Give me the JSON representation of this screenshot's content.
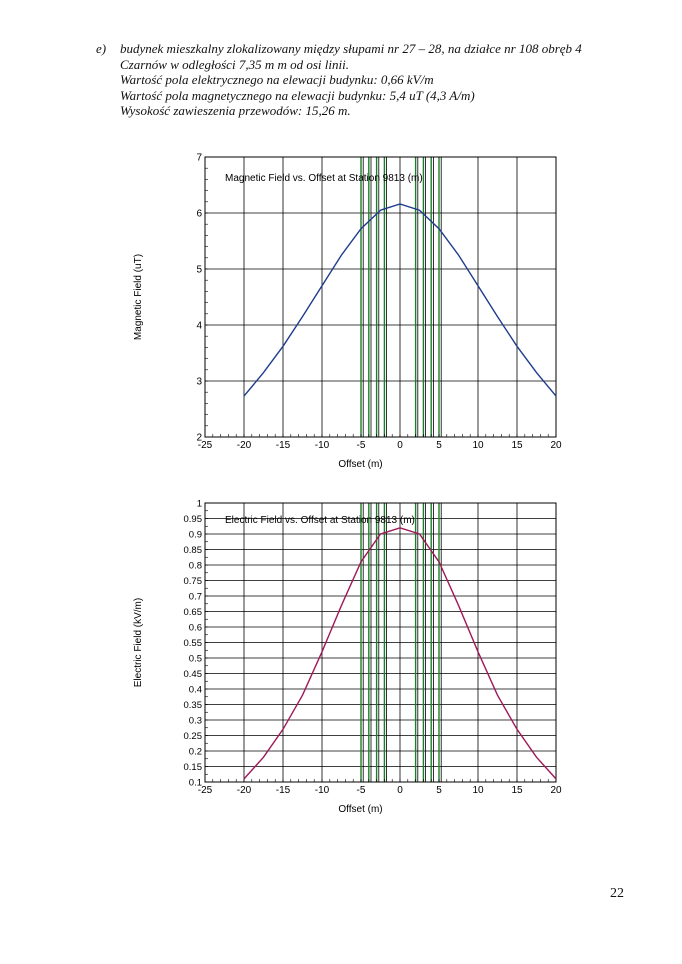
{
  "text": {
    "marker": "e)",
    "lines": [
      "budynek mieszkalny zlokalizowany między słupami nr 27 – 28, na działce nr 108 obręb 4",
      "Czarnów w odległości 7,35 m m od osi linii.",
      "Wartość pola elektrycznego na elewacji budynku: 0,66 kV/m",
      "Wartość pola magnetycznego na elewacji budynku: 5,4 uT (4,3 A/m)",
      "Wysokość zawieszenia przewodów: 15,26 m."
    ]
  },
  "page_number": "22",
  "chart_data": [
    {
      "type": "line",
      "title": "Magnetic Field vs. Offset at Station 9813 (m)",
      "xlabel": "Offset (m)",
      "ylabel": "Magnetic Field (uT)",
      "xlim": [
        -25,
        20
      ],
      "ylim": [
        2,
        7
      ],
      "x_ticks": [
        "-25",
        "-20",
        "-15",
        "-10",
        "-5",
        "0",
        "5",
        "10",
        "15",
        "20"
      ],
      "y_ticks": [
        "2",
        "3",
        "4",
        "5",
        "6",
        "7"
      ],
      "grid": true,
      "conductor_lines_x": [
        -5,
        -4,
        -3,
        -2,
        2,
        3,
        4,
        5
      ],
      "series": [
        {
          "color": "#1f3c8c",
          "x": [
            -20,
            -17.5,
            -15,
            -12.5,
            -10,
            -7.5,
            -5,
            -2.5,
            0,
            2.5,
            5,
            7.5,
            10,
            12.5,
            15,
            17.5,
            20
          ],
          "y": [
            2.73,
            3.15,
            3.62,
            4.15,
            4.7,
            5.25,
            5.72,
            6.05,
            6.16,
            6.05,
            5.72,
            5.25,
            4.7,
            4.15,
            3.62,
            3.15,
            2.73
          ]
        }
      ]
    },
    {
      "type": "line",
      "title": "Electric Field vs. Offset at Station 9813 (m)",
      "xlabel": "Offset (m)",
      "ylabel": "Electric Field (kV/m)",
      "xlim": [
        -25,
        20
      ],
      "ylim": [
        0.1,
        1
      ],
      "x_ticks": [
        "-25",
        "-20",
        "-15",
        "-10",
        "-5",
        "0",
        "5",
        "10",
        "15",
        "20"
      ],
      "y_ticks": [
        "0.1",
        "0.15",
        "0.2",
        "0.25",
        "0.3",
        "0.35",
        "0.4",
        "0.45",
        "0.5",
        "0.55",
        "0.6",
        "0.65",
        "0.7",
        "0.75",
        "0.8",
        "0.85",
        "0.9",
        "0.95",
        "1"
      ],
      "grid": true,
      "conductor_lines_x": [
        -5,
        -4,
        -3,
        -2,
        2,
        3,
        4,
        5
      ],
      "series": [
        {
          "color": "#a0185a",
          "x": [
            -20,
            -17.5,
            -15,
            -12.5,
            -10,
            -7.5,
            -5,
            -2.5,
            0,
            2.5,
            5,
            7.5,
            10,
            12.5,
            15,
            17.5,
            20
          ],
          "y": [
            0.11,
            0.18,
            0.27,
            0.38,
            0.52,
            0.67,
            0.81,
            0.9,
            0.92,
            0.9,
            0.81,
            0.67,
            0.52,
            0.38,
            0.27,
            0.18,
            0.11
          ]
        }
      ]
    }
  ]
}
